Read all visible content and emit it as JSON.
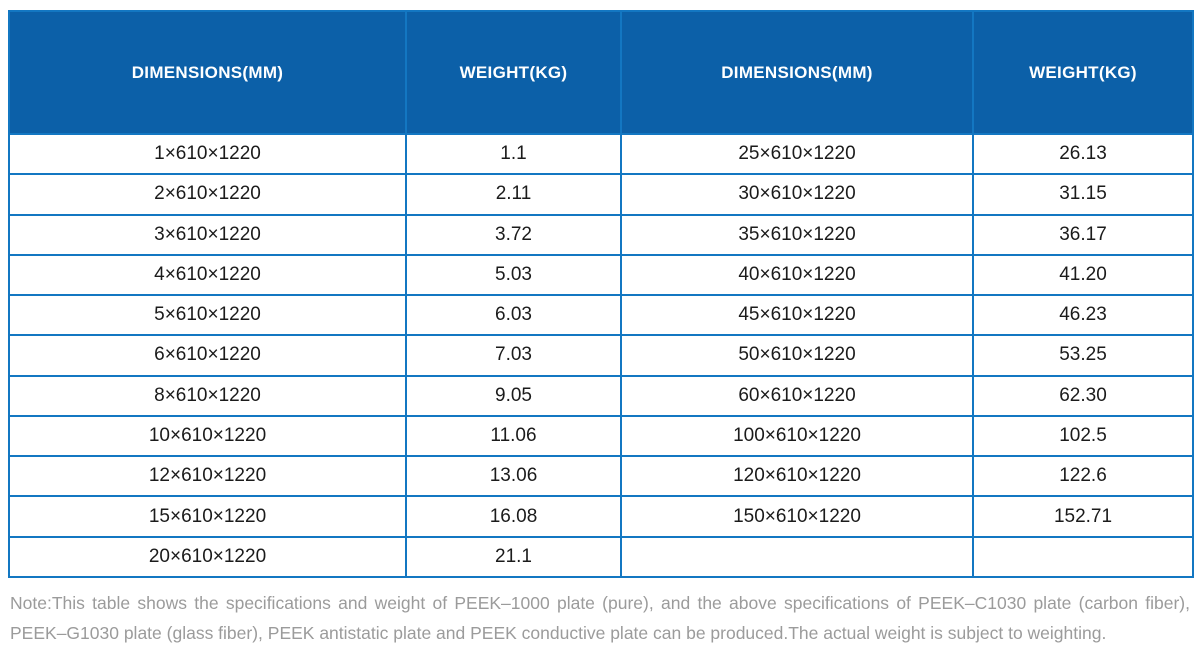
{
  "table": {
    "headers": [
      "DIMENSIONS(MM)",
      "WEIGHT(KG)",
      "DIMENSIONS(MM)",
      "WEIGHT(KG)"
    ],
    "rows": [
      [
        "1×610×1220",
        "1.1",
        "25×610×1220",
        "26.13"
      ],
      [
        "2×610×1220",
        "2.11",
        "30×610×1220",
        "31.15"
      ],
      [
        "3×610×1220",
        "3.72",
        "35×610×1220",
        "36.17"
      ],
      [
        "4×610×1220",
        "5.03",
        "40×610×1220",
        "41.20"
      ],
      [
        "5×610×1220",
        "6.03",
        "45×610×1220",
        "46.23"
      ],
      [
        "6×610×1220",
        "7.03",
        "50×610×1220",
        "53.25"
      ],
      [
        "8×610×1220",
        "9.05",
        "60×610×1220",
        "62.30"
      ],
      [
        "10×610×1220",
        "11.06",
        "100×610×1220",
        "102.5"
      ],
      [
        "12×610×1220",
        "13.06",
        "120×610×1220",
        "122.6"
      ],
      [
        "15×610×1220",
        "16.08",
        "150×610×1220",
        "152.71"
      ],
      [
        "20×610×1220",
        "21.1",
        "",
        ""
      ]
    ]
  },
  "note": {
    "line1": "Note:This table shows the specifications and weight of PEEK–1000 plate (pure), and the above specifications of PEEK–C1030 plate (carbon fiber),",
    "line2": "PEEK–G1030 plate (glass fiber), PEEK antistatic plate and PEEK conductive plate can be produced.The actual weight is subject to weighting."
  },
  "colors": {
    "header_background": "#0c60a8",
    "header_text": "#ffffff",
    "grid_border": "#1377c2",
    "body_text": "#1b1b1b",
    "note_text": "#9b9b9b"
  }
}
